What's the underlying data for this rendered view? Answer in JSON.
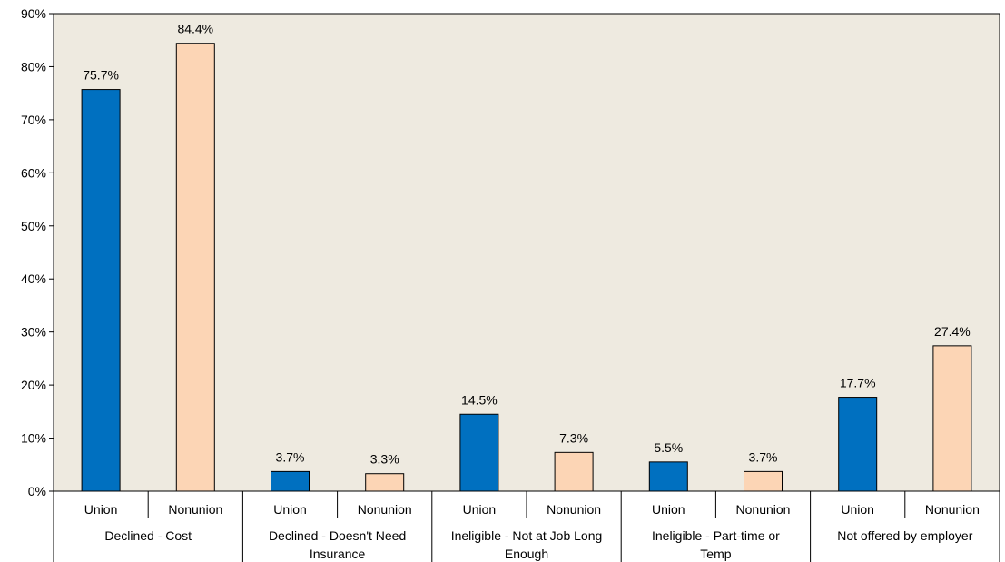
{
  "chart_data": {
    "type": "bar",
    "groups": [
      {
        "label": [
          "Declined - Cost"
        ],
        "categories": [
          "Union",
          "Nonunion"
        ],
        "values": [
          75.7,
          84.4
        ]
      },
      {
        "label": [
          "Declined - Doesn't Need",
          "Insurance"
        ],
        "categories": [
          "Union",
          "Nonunion"
        ],
        "values": [
          3.7,
          3.3
        ]
      },
      {
        "label": [
          "Ineligible - Not at Job Long",
          "Enough"
        ],
        "categories": [
          "Union",
          "Nonunion"
        ],
        "values": [
          14.5,
          7.3
        ]
      },
      {
        "label": [
          "Ineligible - Part-time or",
          "Temp"
        ],
        "categories": [
          "Union",
          "Nonunion"
        ],
        "values": [
          5.5,
          3.7
        ]
      },
      {
        "label": [
          "Not offered by employer"
        ],
        "categories": [
          "Union",
          "Nonunion"
        ],
        "values": [
          17.7,
          27.4
        ]
      }
    ],
    "data_labels": [
      [
        "75.7%",
        "84.4%"
      ],
      [
        "3.7%",
        "3.3%"
      ],
      [
        "14.5%",
        "7.3%"
      ],
      [
        "5.5%",
        "3.7%"
      ],
      [
        "17.7%",
        "27.4%"
      ]
    ],
    "ylim": [
      0,
      90
    ],
    "yticks": [
      0,
      10,
      20,
      30,
      40,
      50,
      60,
      70,
      80,
      90
    ],
    "ytick_labels": [
      "0%",
      "10%",
      "20%",
      "30%",
      "40%",
      "50%",
      "60%",
      "70%",
      "80%",
      "90%"
    ],
    "grid": false,
    "colors": {
      "Union": "#0070C0",
      "Nonunion": "#FCD5B5",
      "plot_background": "#EEEAE0",
      "bar_border": "#000000"
    }
  }
}
